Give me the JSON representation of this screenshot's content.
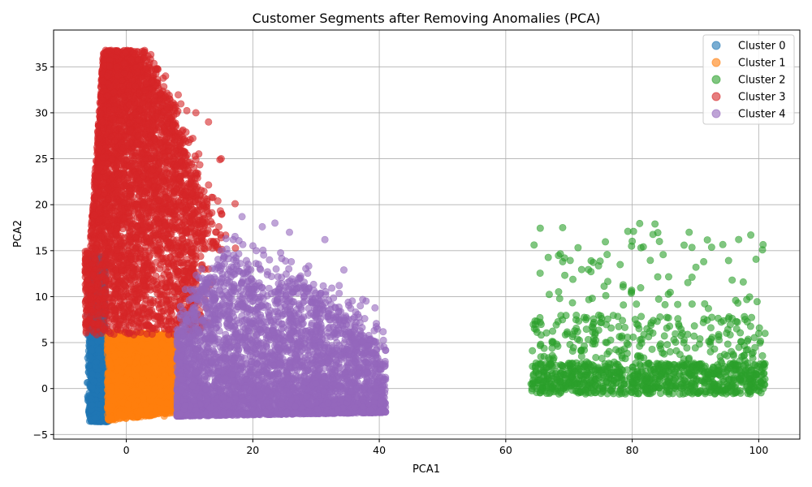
{
  "chart_data": {
    "type": "scatter",
    "title": "Customer Segments after Removing Anomalies (PCA)",
    "xlabel": "PCA1",
    "ylabel": "PCA2",
    "xlim": [
      -11.5,
      106.5
    ],
    "ylim": [
      -5.5,
      39
    ],
    "xticks": [
      0,
      20,
      40,
      60,
      80,
      100
    ],
    "yticks": [
      -5,
      0,
      5,
      10,
      15,
      20,
      25,
      30,
      35
    ],
    "grid": true,
    "legend_position": "top-right",
    "marker_alpha": 0.6,
    "series": [
      {
        "name": "Cluster 0",
        "color": "#1f77b4",
        "region": "x from -6 to -3, y from -3.6 to 14.5",
        "sample_points": [
          [
            -5.5,
            -3.2
          ],
          [
            -5.0,
            0.0
          ],
          [
            -4.5,
            3.0
          ],
          [
            -4.2,
            6.0
          ],
          [
            -3.8,
            9.0
          ],
          [
            -3.4,
            12.0
          ],
          [
            -4.8,
            -1.5
          ],
          [
            -3.6,
            1.5
          ],
          [
            -5.8,
            5.0
          ],
          [
            -3.2,
            13.5
          ],
          [
            -6.2,
            8.0
          ],
          [
            -4.0,
            10.5
          ]
        ]
      },
      {
        "name": "Cluster 1",
        "color": "#ff7f0e",
        "region": "x from -3 to 8, y from -3.5 to 6",
        "sample_points": [
          [
            -2.5,
            -3.3
          ],
          [
            0.0,
            -3.0
          ],
          [
            2.5,
            -2.0
          ],
          [
            5.0,
            0.0
          ],
          [
            7.5,
            2.0
          ],
          [
            -2.0,
            3.0
          ],
          [
            1.0,
            5.5
          ],
          [
            4.0,
            4.0
          ],
          [
            6.0,
            -3.0
          ],
          [
            7.8,
            5.5
          ],
          [
            3.0,
            1.0
          ],
          [
            -1.0,
            0.5
          ]
        ]
      },
      {
        "name": "Cluster 2",
        "color": "#2ca02c",
        "region": "x from 64 to 101, dense band y from -0.5 to 3, sparse up to y 18",
        "sample_points": [
          [
            64.0,
            0.5
          ],
          [
            66.0,
            2.0
          ],
          [
            68.0,
            -0.3
          ],
          [
            70.0,
            1.0
          ],
          [
            72.0,
            3.5
          ],
          [
            74.0,
            0.8
          ],
          [
            76.0,
            5.0
          ],
          [
            78.0,
            1.2
          ],
          [
            80.0,
            0.5
          ],
          [
            82.0,
            2.5
          ],
          [
            84.0,
            1.0
          ],
          [
            86.0,
            4.0
          ],
          [
            88.0,
            0.6
          ],
          [
            90.0,
            2.2
          ],
          [
            92.0,
            1.5
          ],
          [
            94.0,
            3.0
          ],
          [
            96.0,
            0.9
          ],
          [
            98.0,
            2.0
          ],
          [
            100.0,
            1.0
          ],
          [
            101.0,
            6.0
          ],
          [
            69.0,
            13.8
          ],
          [
            73.5,
            13.9
          ],
          [
            79.3,
            17.1
          ],
          [
            83.6,
            17.9
          ],
          [
            84.3,
            16.0
          ],
          [
            89.0,
            17.0
          ],
          [
            88.2,
            15.6
          ],
          [
            91.3,
            13.8
          ],
          [
            95.8,
            11.8
          ]
        ]
      },
      {
        "name": "Cluster 3",
        "color": "#d62728",
        "region": "x from -6 to 16, y from 5.5 to 37",
        "sample_points": [
          [
            -2.0,
            36.5
          ],
          [
            -1.0,
            35.5
          ],
          [
            0.0,
            33.0
          ],
          [
            -3.0,
            30.0
          ],
          [
            2.0,
            30.0
          ],
          [
            4.0,
            25.0
          ],
          [
            -4.0,
            25.0
          ],
          [
            6.0,
            20.0
          ],
          [
            9.0,
            18.0
          ],
          [
            11.0,
            15.0
          ],
          [
            13.0,
            13.0
          ],
          [
            2.0,
            8.0
          ],
          [
            -2.5,
            6.0
          ],
          [
            8.0,
            10.0
          ],
          [
            15.0,
            25.0
          ],
          [
            13.5,
            20.8
          ],
          [
            14.8,
            24.9
          ],
          [
            13.0,
            29.0
          ],
          [
            11.0,
            30.0
          ],
          [
            17.2,
            20.1
          ],
          [
            6.0,
            6.5
          ],
          [
            0.5,
            20.0
          ]
        ]
      },
      {
        "name": "Cluster 4",
        "color": "#9467bd",
        "region": "x from 8 to 41, y from -3 to 18",
        "sample_points": [
          [
            8.0,
            -3.0
          ],
          [
            10.0,
            5.0
          ],
          [
            12.0,
            12.0
          ],
          [
            15.0,
            15.0
          ],
          [
            18.0,
            10.0
          ],
          [
            20.0,
            5.0
          ],
          [
            22.0,
            0.0
          ],
          [
            25.0,
            -2.0
          ],
          [
            28.0,
            3.0
          ],
          [
            30.0,
            8.0
          ],
          [
            33.0,
            6.0
          ],
          [
            35.0,
            2.0
          ],
          [
            38.0,
            4.0
          ],
          [
            40.0,
            0.0
          ],
          [
            41.0,
            1.0
          ],
          [
            23.5,
            18.0
          ],
          [
            18.3,
            18.7
          ],
          [
            21.5,
            17.6
          ],
          [
            25.8,
            17.0
          ],
          [
            31.4,
            16.2
          ],
          [
            34.4,
            12.9
          ],
          [
            37.0,
            9.0
          ]
        ]
      }
    ]
  }
}
